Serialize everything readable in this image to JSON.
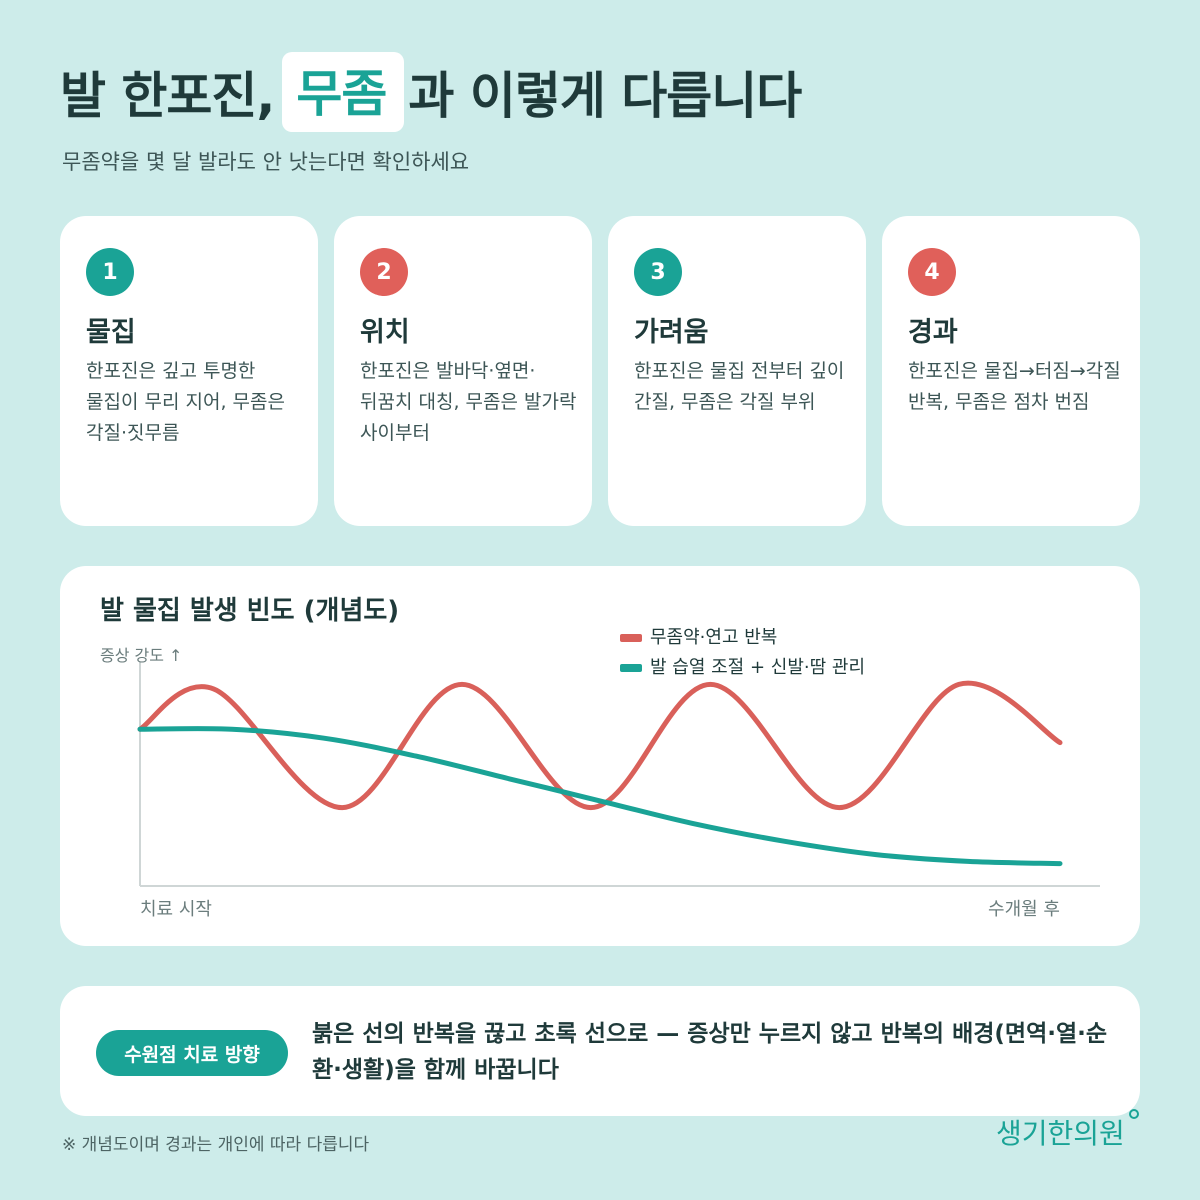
{
  "header": {
    "title_part1": "발 한포진,",
    "title_highlight": "무좀",
    "title_part2": "과 이렇게 다릅니다",
    "subtitle": "무좀약을 몇 달 발라도 안 낫는다면 확인하세요"
  },
  "cards": [
    {
      "num": "1",
      "title": "물집",
      "body": "한포진은 깊고 투명한 물집이 무리 지어, 무좀은 각질·짓무름",
      "color": "#1aa396"
    },
    {
      "num": "2",
      "title": "위치",
      "body": "한포진은 발바닥·옆면·뒤꿈치 대칭, 무좀은 발가락 사이부터",
      "color": "#e0605a"
    },
    {
      "num": "3",
      "title": "가려움",
      "body": "한포진은 물집 전부터 깊이 간질, 무좀은 각질 부위",
      "color": "#1aa396"
    },
    {
      "num": "4",
      "title": "경과",
      "body": "한포진은 물집→터짐→각질 반복, 무좀은 점차 번짐",
      "color": "#e0605a"
    }
  ],
  "chart_data": {
    "type": "line",
    "title": "발 물집 발생 빈도 (개념도)",
    "ylabel": "증상 강도 ↑",
    "xlabel_start": "치료 시작",
    "xlabel_end": "수개월 후",
    "legend_placement": "top-right",
    "ylim": [
      0,
      1
    ],
    "xlim": [
      0,
      1
    ],
    "series": [
      {
        "name": "무좀약·연고 반복",
        "color": "#d9605a",
        "x": [
          0,
          0.08,
          0.22,
          0.35,
          0.49,
          0.62,
          0.76,
          0.89,
          1.0
        ],
        "y": [
          0.7,
          0.88,
          0.35,
          0.9,
          0.35,
          0.9,
          0.35,
          0.9,
          0.64
        ]
      },
      {
        "name": "발 습열 조절 + 신발·땀 관리",
        "color": "#1aa396",
        "x": [
          0,
          0.1,
          0.2,
          0.3,
          0.4,
          0.5,
          0.6,
          0.7,
          0.8,
          0.9,
          1.0
        ],
        "y": [
          0.7,
          0.7,
          0.66,
          0.58,
          0.48,
          0.38,
          0.28,
          0.2,
          0.14,
          0.11,
          0.1
        ]
      }
    ]
  },
  "bottom": {
    "pill": "수원점 치료 방향",
    "text": "붉은 선의 반복을 끊고 초록 선으로 — 증상만 누르지 않고 반복의 배경(면역·열·순환·생활)을 함께 바꿉니다"
  },
  "footnote": "※ 개념도이며 경과는 개인에 따라 다릅니다",
  "logo": "생기한의원",
  "colors": {
    "teal": "#1aa396",
    "red": "#e0605a",
    "background": "#cdecea"
  }
}
